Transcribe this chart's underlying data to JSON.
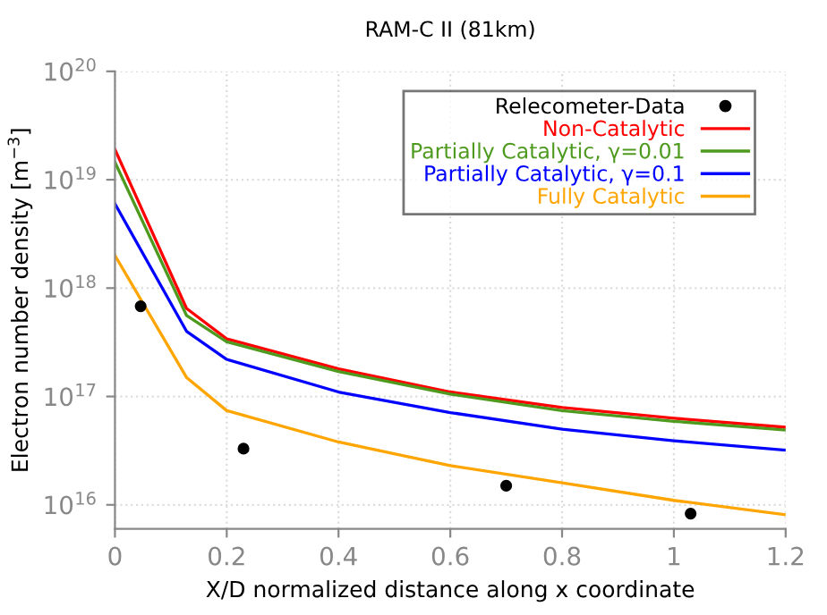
{
  "chart_data": {
    "type": "line",
    "title": "RAM-C II (81km)",
    "xlabel": "X/D normalized distance along x coordinate",
    "ylabel": "Electron number density [m$^{−3}$]",
    "log": "y",
    "grid": true,
    "legend": "top right",
    "marker": "none",
    "line_style": "solid",
    "xlim": [
      0,
      1.2
    ],
    "xticks": [
      0,
      0.2,
      0.4,
      0.6,
      0.8,
      1,
      1.2
    ],
    "ylim": [
      6000000000000000.0,
      1e+20
    ],
    "yticks": [
      {
        "value": 1e+16,
        "label": "10$^{16}$"
      },
      {
        "value": 1e+17,
        "label": "10$^{17}$"
      },
      {
        "value": 1e+18,
        "label": "10$^{18}$"
      },
      {
        "value": 1e+19,
        "label": "10$^{19}$"
      },
      {
        "value": 1e+20,
        "label": "10$^{20}$"
      }
    ],
    "series": [
      {
        "name": "Relecometer-Data",
        "type": "scatter",
        "marker": "circle",
        "color": "#000000",
        "x": [
          0.046,
          0.23,
          0.7,
          1.03
        ],
        "values": [
          6.8e+17,
          3.3e+16,
          1.5e+16,
          8300000000000000.0
        ]
      },
      {
        "name": "Non-Catalytic",
        "color": "#ff0000",
        "x": [
          0,
          0.128,
          0.2,
          0.4,
          0.6,
          0.8,
          1.0,
          1.2
        ],
        "values": [
          1.9e+19,
          6.5e+17,
          3.4e+17,
          1.8e+17,
          1.1e+17,
          7.9e+16,
          6.3e+16,
          5.2e+16
        ]
      },
      {
        "name": "Partially Catalytic, γ=0.01",
        "color": "#4d9a1e",
        "x": [
          0,
          0.128,
          0.2,
          0.4,
          0.6,
          0.8,
          1.0,
          1.2
        ],
        "values": [
          1.45e+19,
          5.6e+17,
          3.2e+17,
          1.7e+17,
          1.05e+17,
          7.4e+16,
          5.9e+16,
          4.9e+16
        ]
      },
      {
        "name": "Partially Catalytic, γ=0.1",
        "color": "#0000ff",
        "x": [
          0,
          0.128,
          0.2,
          0.4,
          0.6,
          0.8,
          1.0,
          1.2
        ],
        "values": [
          6e+18,
          4e+17,
          2.2e+17,
          1.1e+17,
          7.1e+16,
          5e+16,
          3.9e+16,
          3.2e+16
        ]
      },
      {
        "name": "Fully Catalytic",
        "color": "#ffa500",
        "x": [
          0,
          0.128,
          0.2,
          0.4,
          0.6,
          0.8,
          1.0,
          1.2
        ],
        "values": [
          2e+18,
          1.5e+17,
          7.4e+16,
          3.8e+16,
          2.3e+16,
          1.6e+16,
          1.1e+16,
          8100000000000000.0
        ]
      }
    ]
  }
}
